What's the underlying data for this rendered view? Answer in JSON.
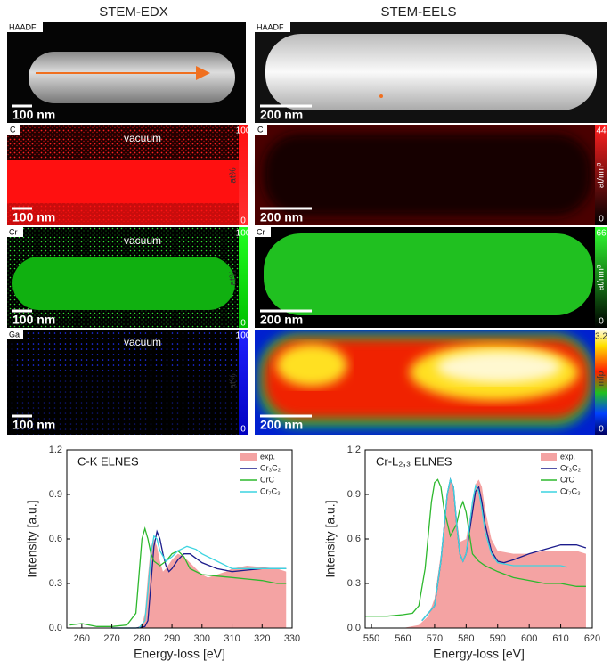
{
  "column_titles": [
    "STEM-EDX",
    "STEM-EELS"
  ],
  "rows": [
    {
      "left": {
        "label": "HAADF",
        "scale_bar": "100 nm"
      },
      "right": {
        "label": "HAADF",
        "scale_bar": "200 nm"
      }
    },
    {
      "left": {
        "label": "C",
        "annotation": "vacuum",
        "scale_bar": "100 nm",
        "colorbar": {
          "max": 100,
          "min": 0,
          "unit": "at%"
        }
      },
      "right": {
        "label": "C",
        "scale_bar": "200 nm",
        "colorbar": {
          "max": 44,
          "min": 0,
          "unit": "at/nm³"
        }
      }
    },
    {
      "left": {
        "label": "Cr",
        "annotation": "vacuum",
        "scale_bar": "100 nm",
        "colorbar": {
          "max": 100,
          "min": 0,
          "unit": "at%"
        }
      },
      "right": {
        "label": "Cr",
        "scale_bar": "200 nm",
        "colorbar": {
          "max": 66,
          "min": 0,
          "unit": "at/nm³"
        }
      }
    },
    {
      "left": {
        "label": "Ga",
        "annotation": "vacuum",
        "scale_bar": "100 nm",
        "colorbar": {
          "max": 100,
          "min": 0,
          "unit": "at%"
        }
      },
      "right": {
        "label": "",
        "scale_bar": "200 nm",
        "colorbar": {
          "max": 3.2,
          "min": 0,
          "unit": "mfp"
        }
      }
    }
  ],
  "chart_data": [
    {
      "type": "line",
      "title": "C-K ELNES",
      "x_label": "Energy-loss [eV]",
      "y_label": "Intensity [a.u.]",
      "xlim": [
        255,
        330
      ],
      "xticks": [
        260,
        270,
        280,
        290,
        300,
        310,
        320,
        330
      ],
      "ylim": [
        0,
        1.2
      ],
      "yticks": [
        {
          "value": 0,
          "label": "0.0"
        },
        0.3,
        0.6,
        0.9,
        1.2
      ],
      "legend": "top-right",
      "series": [
        {
          "name": "exp.",
          "kind": "area",
          "color": "#f4a3a3",
          "x": [
            258,
            270,
            278,
            280,
            281,
            282,
            283,
            284,
            285,
            286,
            287,
            288,
            290,
            292,
            294,
            296,
            298,
            300,
            302,
            305,
            308,
            310,
            315,
            320,
            325,
            328
          ],
          "values": [
            0,
            0,
            0,
            0.02,
            0.1,
            0.35,
            0.55,
            0.6,
            0.55,
            0.45,
            0.38,
            0.4,
            0.46,
            0.5,
            0.48,
            0.44,
            0.4,
            0.36,
            0.34,
            0.36,
            0.38,
            0.4,
            0.42,
            0.41,
            0.4,
            0.38
          ]
        },
        {
          "name": "Cr₃C₂",
          "kind": "line",
          "color": "#1c1c8c",
          "x": [
            270,
            278,
            281,
            282,
            283,
            284,
            285,
            286,
            287,
            288,
            289,
            290,
            292,
            294,
            296,
            298,
            300,
            305,
            310,
            315,
            320,
            325,
            328
          ],
          "values": [
            0,
            0,
            0.01,
            0.05,
            0.3,
            0.55,
            0.65,
            0.6,
            0.5,
            0.42,
            0.38,
            0.4,
            0.46,
            0.5,
            0.5,
            0.47,
            0.44,
            0.4,
            0.38,
            0.39,
            0.4,
            0.4,
            0.4
          ]
        },
        {
          "name": "CrC",
          "kind": "line",
          "color": "#2db82d",
          "x": [
            256,
            260,
            265,
            270,
            275,
            278,
            279,
            280,
            281,
            282,
            283,
            284,
            286,
            288,
            290,
            292,
            294,
            296,
            300,
            305,
            310,
            315,
            320,
            325,
            328
          ],
          "values": [
            0.02,
            0.03,
            0.01,
            0.01,
            0.02,
            0.1,
            0.35,
            0.6,
            0.67,
            0.6,
            0.5,
            0.45,
            0.42,
            0.45,
            0.5,
            0.52,
            0.48,
            0.4,
            0.36,
            0.35,
            0.34,
            0.33,
            0.32,
            0.3,
            0.3
          ]
        },
        {
          "name": "Cr₇C₃",
          "kind": "line",
          "color": "#3cd4e0",
          "x": [
            270,
            279,
            281,
            282,
            283,
            284,
            285,
            286,
            288,
            290,
            292,
            295,
            298,
            300,
            305,
            310,
            315,
            320,
            325,
            328
          ],
          "values": [
            0,
            0,
            0.05,
            0.25,
            0.5,
            0.62,
            0.6,
            0.52,
            0.45,
            0.48,
            0.52,
            0.55,
            0.53,
            0.5,
            0.45,
            0.4,
            0.4,
            0.4,
            0.4,
            0.4
          ]
        }
      ]
    },
    {
      "type": "line",
      "title": "Cr-L₂,₃ ELNES",
      "x_label": "Energy-loss [eV]",
      "y_label": "Intensity [a.u.]",
      "xlim": [
        548,
        620
      ],
      "xticks": [
        550,
        560,
        570,
        580,
        590,
        600,
        610,
        620
      ],
      "ylim": [
        0,
        1.2
      ],
      "yticks": [
        {
          "value": 0,
          "label": "0.0"
        },
        0.3,
        0.6,
        0.9,
        1.2
      ],
      "legend": "top-right",
      "series": [
        {
          "name": "exp.",
          "kind": "area",
          "color": "#f4a3a3",
          "x": [
            548,
            560,
            565,
            568,
            570,
            572,
            574,
            575,
            576,
            577,
            578,
            580,
            582,
            583,
            584,
            585,
            586,
            588,
            590,
            595,
            600,
            605,
            610,
            615,
            618
          ],
          "values": [
            0,
            0,
            0.02,
            0.08,
            0.2,
            0.5,
            0.9,
            1.0,
            0.95,
            0.75,
            0.58,
            0.6,
            0.85,
            0.97,
            1.0,
            0.95,
            0.8,
            0.6,
            0.52,
            0.5,
            0.5,
            0.52,
            0.52,
            0.52,
            0.5
          ]
        },
        {
          "name": "Cr₃C₂",
          "kind": "line",
          "color": "#1c1c8c",
          "x": [
            566,
            570,
            572,
            574,
            575,
            576,
            577,
            578,
            579,
            580,
            582,
            583,
            584,
            585,
            586,
            588,
            590,
            592,
            595,
            600,
            605,
            610,
            615,
            618
          ],
          "values": [
            0.05,
            0.15,
            0.45,
            0.9,
            1.0,
            0.95,
            0.7,
            0.5,
            0.45,
            0.5,
            0.78,
            0.92,
            0.95,
            0.85,
            0.7,
            0.52,
            0.45,
            0.44,
            0.46,
            0.5,
            0.53,
            0.56,
            0.56,
            0.54
          ]
        },
        {
          "name": "CrC",
          "kind": "line",
          "color": "#2db82d",
          "x": [
            548,
            555,
            560,
            563,
            565,
            567,
            569,
            570,
            571,
            572,
            573,
            575,
            577,
            578,
            579,
            580,
            582,
            584,
            586,
            590,
            595,
            600,
            605,
            610,
            615,
            618
          ],
          "values": [
            0.08,
            0.08,
            0.09,
            0.1,
            0.15,
            0.4,
            0.85,
            0.98,
            1.0,
            0.95,
            0.8,
            0.62,
            0.7,
            0.8,
            0.85,
            0.78,
            0.5,
            0.45,
            0.42,
            0.38,
            0.34,
            0.32,
            0.3,
            0.3,
            0.28,
            0.28
          ]
        },
        {
          "name": "Cr₇C₃",
          "kind": "line",
          "color": "#3cd4e0",
          "x": [
            566,
            570,
            572,
            574,
            575,
            576,
            577,
            578,
            579,
            580,
            582,
            583,
            584,
            585,
            586,
            588,
            590,
            595,
            600,
            605,
            610,
            612
          ],
          "values": [
            0.05,
            0.15,
            0.45,
            0.9,
            1.0,
            0.95,
            0.7,
            0.5,
            0.45,
            0.5,
            0.85,
            0.96,
            0.92,
            0.8,
            0.65,
            0.5,
            0.44,
            0.42,
            0.42,
            0.42,
            0.42,
            0.41
          ]
        }
      ]
    }
  ]
}
